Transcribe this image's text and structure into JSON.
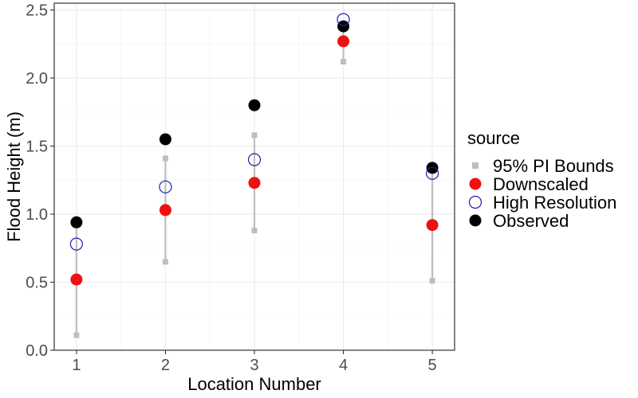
{
  "chart_data": {
    "type": "scatter",
    "xlabel": "Location Number",
    "ylabel": "Flood Height (m)",
    "x": [
      1,
      2,
      3,
      4,
      5
    ],
    "x_ticks": [
      "1",
      "2",
      "3",
      "4",
      "5"
    ],
    "y_ticks": [
      "0.0",
      "0.5",
      "1.0",
      "1.5",
      "2.0",
      "2.5"
    ],
    "xlim": [
      0.75,
      5.25
    ],
    "ylim": [
      0,
      2.55
    ],
    "grid": true,
    "legend_position": "right",
    "legend_title": "source",
    "series": [
      {
        "name": "95% PI Bounds",
        "kind": "interval",
        "color": "#bebebe",
        "lower": [
          0.11,
          0.65,
          0.88,
          2.12,
          0.51
        ],
        "upper": [
          0.94,
          1.41,
          1.58,
          2.38,
          1.34
        ]
      },
      {
        "name": "Downscaled",
        "kind": "point",
        "color": "#ee1111",
        "values": [
          0.52,
          1.03,
          1.23,
          2.27,
          0.92
        ]
      },
      {
        "name": "High Resolution",
        "kind": "point",
        "color": "#1c1cb4",
        "values": [
          0.78,
          1.2,
          1.4,
          2.43,
          1.3
        ]
      },
      {
        "name": "Observed",
        "kind": "point",
        "color": "#000000",
        "values": [
          0.94,
          1.55,
          1.8,
          2.38,
          1.34
        ]
      }
    ]
  }
}
